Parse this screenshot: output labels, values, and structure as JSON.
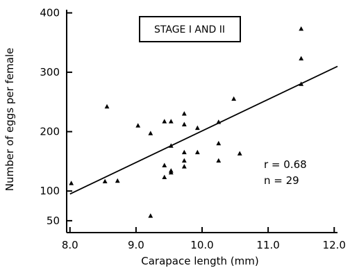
{
  "chart_data": {
    "type": "scatter",
    "title": "",
    "annotation_box": "STAGE I AND II",
    "xlabel": "Carapace length (mm)",
    "ylabel": "Number of eggs per female",
    "xlim": [
      7.95,
      12.05
    ],
    "ylim": [
      30,
      410
    ],
    "x_ticks": [
      8.0,
      9.0,
      10.0,
      11.0,
      12.0
    ],
    "x_tick_labels": [
      "8.0",
      "9.0",
      "10.0",
      "11.0",
      "12.0"
    ],
    "y_ticks": [
      50,
      100,
      200,
      300,
      400
    ],
    "y_tick_labels": [
      "50",
      "100",
      "200",
      "300",
      "400"
    ],
    "grid": false,
    "marker": "triangle",
    "stats": {
      "r": "r = 0.68",
      "n": "n = 29"
    },
    "points": [
      {
        "x": 8.02,
        "y": 113
      },
      {
        "x": 8.53,
        "y": 116
      },
      {
        "x": 8.56,
        "y": 242
      },
      {
        "x": 8.72,
        "y": 117
      },
      {
        "x": 9.03,
        "y": 210
      },
      {
        "x": 9.22,
        "y": 197
      },
      {
        "x": 9.22,
        "y": 58
      },
      {
        "x": 9.43,
        "y": 217
      },
      {
        "x": 9.43,
        "y": 143
      },
      {
        "x": 9.43,
        "y": 123
      },
      {
        "x": 9.53,
        "y": 217
      },
      {
        "x": 9.53,
        "y": 176
      },
      {
        "x": 9.53,
        "y": 134
      },
      {
        "x": 9.53,
        "y": 131
      },
      {
        "x": 9.73,
        "y": 230
      },
      {
        "x": 9.73,
        "y": 212
      },
      {
        "x": 9.73,
        "y": 165
      },
      {
        "x": 9.73,
        "y": 151
      },
      {
        "x": 9.73,
        "y": 141
      },
      {
        "x": 9.93,
        "y": 206
      },
      {
        "x": 9.93,
        "y": 165
      },
      {
        "x": 10.25,
        "y": 216
      },
      {
        "x": 10.25,
        "y": 180
      },
      {
        "x": 10.25,
        "y": 151
      },
      {
        "x": 10.48,
        "y": 255
      },
      {
        "x": 10.57,
        "y": 163
      },
      {
        "x": 11.5,
        "y": 373
      },
      {
        "x": 11.5,
        "y": 323
      },
      {
        "x": 11.5,
        "y": 280
      }
    ],
    "regression_line": {
      "x": [
        8.0,
        12.05
      ],
      "y": [
        95,
        310
      ]
    }
  }
}
